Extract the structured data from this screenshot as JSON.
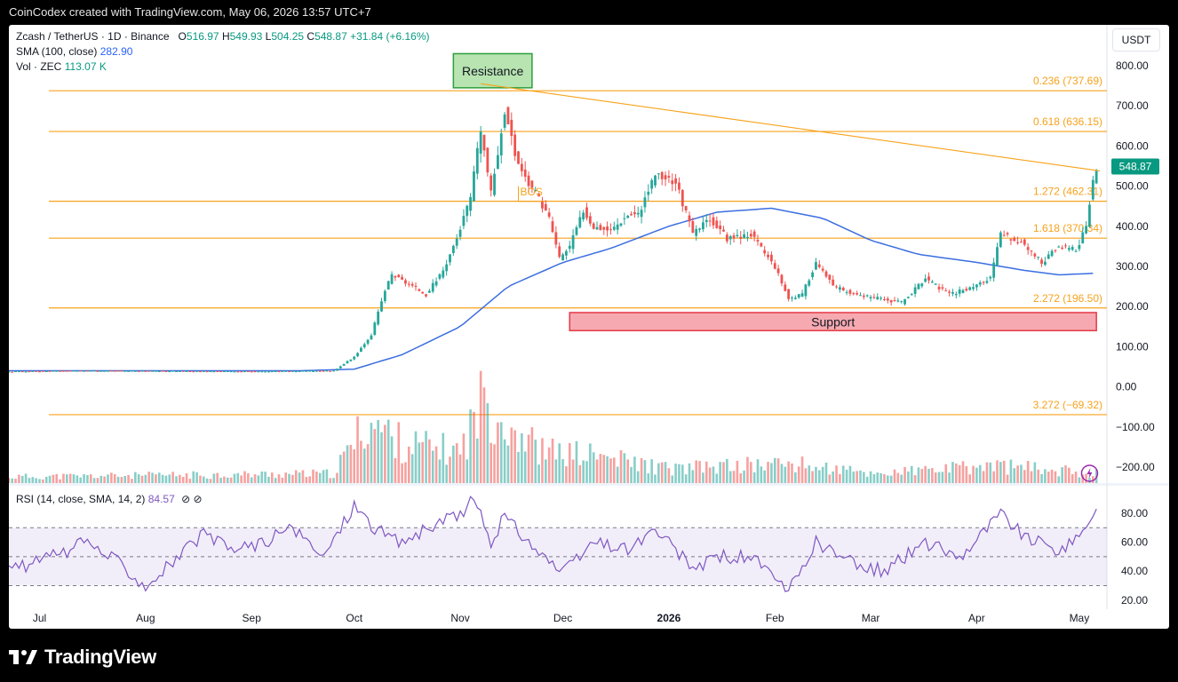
{
  "header": {
    "caption": "CoinCodex created with TradingView.com, May 06, 2026 13:57 UTC+7"
  },
  "legend": {
    "symbol": "Zcash / TetherUS · 1D · Binance",
    "o_label": "O",
    "o_value": "516.97",
    "h_label": "H",
    "h_value": "549.93",
    "l_label": "L",
    "l_value": "504.25",
    "c_label": "C",
    "c_value": "548.87",
    "change": "+31.84 (+6.16%)",
    "sma_label": "SMA (100, close)",
    "sma_value": "282.90",
    "vol_label": "Vol · ZEC",
    "vol_value": "113.07 K",
    "rsi_label": "RSI (14, close, SMA, 14, 2)",
    "rsi_value": "84.57",
    "hide_icons": "⊘ ⊘"
  },
  "currency": "USDT",
  "footer": {
    "brand": "TradingView",
    "logo_icon": "tradingview-logo-icon"
  },
  "colors": {
    "up": "#26a69a",
    "down": "#ef5350",
    "sma": "#3b6ee0",
    "fib": "#f7a21b",
    "rsi": "#7e57c2",
    "resistance_fill": "#b7e4b0",
    "resistance_border": "#2e9e3e",
    "support_fill": "#f6a9b0",
    "support_border": "#e53946",
    "price_tag": "#089981"
  },
  "chart_data": {
    "type": "candlestick",
    "title": "Zcash / TetherUS · 1D · Binance",
    "x_ticks": [
      "Jul",
      "Aug",
      "Sep",
      "Oct",
      "Nov",
      "Dec",
      "2026",
      "Feb",
      "Mar",
      "Apr",
      "May"
    ],
    "y_ticks": [
      "800.00",
      "700.00",
      "600.00",
      "500.00",
      "400.00",
      "300.00",
      "200.00",
      "100.00",
      "0.00",
      "−100.00",
      "−200.00"
    ],
    "rsi_ticks": [
      "80.00",
      "60.00",
      "40.00",
      "20.00"
    ],
    "ylim": [
      -240,
      845
    ],
    "rsi_ylim": [
      14,
      93
    ],
    "rsi_bands": {
      "upper": 70,
      "middle": 50,
      "lower": 30
    },
    "last_price": "548.87",
    "fib_levels": [
      {
        "label": "0.236 (737.69)",
        "value": 737.69
      },
      {
        "label": "0.618 (636.15)",
        "value": 636.15
      },
      {
        "label": "1.272 (462.31)",
        "value": 462.31
      },
      {
        "label": "1.618 (370.34)",
        "value": 370.34
      },
      {
        "label": "2.272 (196.50)",
        "value": 196.5
      },
      {
        "label": "3.272 (−69.32)",
        "value": -69.32
      }
    ],
    "resistance_label": "Resistance",
    "support_label": "Support",
    "bos_label": "BOS",
    "trendline": {
      "from": [
        "2025-11-07",
        755
      ],
      "to": [
        "2026-05-07",
        538
      ]
    },
    "price_keys": [
      [
        "2025-06-21",
        38
      ],
      [
        "2025-07-15",
        40
      ],
      [
        "2025-08-10",
        39
      ],
      [
        "2025-09-05",
        38
      ],
      [
        "2025-09-25",
        40
      ],
      [
        "2025-10-01",
        75
      ],
      [
        "2025-10-06",
        130
      ],
      [
        "2025-10-10",
        240
      ],
      [
        "2025-10-12",
        280
      ],
      [
        "2025-10-18",
        250
      ],
      [
        "2025-10-22",
        230
      ],
      [
        "2025-10-27",
        290
      ],
      [
        "2025-10-31",
        370
      ],
      [
        "2025-11-04",
        470
      ],
      [
        "2025-11-07",
        640
      ],
      [
        "2025-11-10",
        480
      ],
      [
        "2025-11-14",
        690
      ],
      [
        "2025-11-17",
        580
      ],
      [
        "2025-11-20",
        520
      ],
      [
        "2025-11-24",
        470
      ],
      [
        "2025-11-27",
        420
      ],
      [
        "2025-11-30",
        320
      ],
      [
        "2025-12-03",
        350
      ],
      [
        "2025-12-07",
        440
      ],
      [
        "2025-12-10",
        400
      ],
      [
        "2025-12-15",
        390
      ],
      [
        "2025-12-20",
        430
      ],
      [
        "2025-12-23",
        430
      ],
      [
        "2025-12-28",
        530
      ],
      [
        "2026-01-03",
        510
      ],
      [
        "2026-01-08",
        380
      ],
      [
        "2026-01-13",
        420
      ],
      [
        "2026-01-18",
        370
      ],
      [
        "2026-01-25",
        380
      ],
      [
        "2026-02-01",
        300
      ],
      [
        "2026-02-05",
        220
      ],
      [
        "2026-02-09",
        230
      ],
      [
        "2026-02-13",
        310
      ],
      [
        "2026-02-18",
        250
      ],
      [
        "2026-02-24",
        230
      ],
      [
        "2026-03-03",
        220
      ],
      [
        "2026-03-10",
        210
      ],
      [
        "2026-03-17",
        270
      ],
      [
        "2026-03-24",
        230
      ],
      [
        "2026-03-31",
        250
      ],
      [
        "2026-04-05",
        270
      ],
      [
        "2026-04-08",
        380
      ],
      [
        "2026-04-14",
        360
      ],
      [
        "2026-04-20",
        310
      ],
      [
        "2026-04-25",
        350
      ],
      [
        "2026-04-30",
        340
      ],
      [
        "2026-05-03",
        400
      ],
      [
        "2026-05-05",
        517
      ],
      [
        "2026-05-06",
        549
      ]
    ],
    "sma_keys": [
      [
        "2025-06-21",
        40
      ],
      [
        "2025-09-15",
        40
      ],
      [
        "2025-10-01",
        44
      ],
      [
        "2025-10-15",
        80
      ],
      [
        "2025-11-01",
        150
      ],
      [
        "2025-11-15",
        250
      ],
      [
        "2025-12-01",
        310
      ],
      [
        "2025-12-15",
        345
      ],
      [
        "2026-01-01",
        400
      ],
      [
        "2026-01-15",
        435
      ],
      [
        "2026-01-31",
        445
      ],
      [
        "2026-02-15",
        420
      ],
      [
        "2026-03-01",
        365
      ],
      [
        "2026-03-15",
        330
      ],
      [
        "2026-04-01",
        310
      ],
      [
        "2026-04-15",
        290
      ],
      [
        "2026-04-25",
        279
      ],
      [
        "2026-05-06",
        283
      ]
    ],
    "rsi_keys": [
      [
        "2025-06-21",
        40
      ],
      [
        "2025-07-05",
        50
      ],
      [
        "2025-07-15",
        60
      ],
      [
        "2025-07-25",
        45
      ],
      [
        "2025-08-01",
        30
      ],
      [
        "2025-08-08",
        45
      ],
      [
        "2025-08-18",
        65
      ],
      [
        "2025-08-26",
        55
      ],
      [
        "2025-09-05",
        60
      ],
      [
        "2025-09-12",
        70
      ],
      [
        "2025-09-22",
        50
      ],
      [
        "2025-10-01",
        86
      ],
      [
        "2025-10-07",
        70
      ],
      [
        "2025-10-14",
        60
      ],
      [
        "2025-10-22",
        68
      ],
      [
        "2025-11-01",
        80
      ],
      [
        "2025-11-05",
        90
      ],
      [
        "2025-11-10",
        60
      ],
      [
        "2025-11-14",
        78
      ],
      [
        "2025-11-22",
        58
      ],
      [
        "2025-12-01",
        38
      ],
      [
        "2025-12-10",
        60
      ],
      [
        "2025-12-20",
        55
      ],
      [
        "2025-12-28",
        68
      ],
      [
        "2026-01-08",
        42
      ],
      [
        "2026-01-15",
        50
      ],
      [
        "2026-01-25",
        50
      ],
      [
        "2026-02-05",
        25
      ],
      [
        "2026-02-13",
        60
      ],
      [
        "2026-02-24",
        45
      ],
      [
        "2026-03-05",
        40
      ],
      [
        "2026-03-17",
        60
      ],
      [
        "2026-03-27",
        50
      ],
      [
        "2026-04-08",
        80
      ],
      [
        "2026-04-16",
        62
      ],
      [
        "2026-04-24",
        55
      ],
      [
        "2026-04-30",
        60
      ],
      [
        "2026-05-06",
        85
      ]
    ],
    "rsi_sma_keys": [
      [
        "2025-06-21",
        45
      ],
      [
        "2025-08-01",
        48
      ],
      [
        "2025-09-01",
        55
      ],
      [
        "2025-10-01",
        60
      ],
      [
        "2025-11-01",
        68
      ],
      [
        "2025-12-01",
        58
      ],
      [
        "2026-01-01",
        55
      ],
      [
        "2026-02-01",
        45
      ],
      [
        "2026-03-01",
        45
      ],
      [
        "2026-04-01",
        55
      ],
      [
        "2026-05-06",
        65
      ]
    ],
    "volume_keys": [
      [
        "2025-06-21",
        8
      ],
      [
        "2025-09-25",
        12
      ],
      [
        "2025-10-05",
        80
      ],
      [
        "2025-10-15",
        50
      ],
      [
        "2025-11-01",
        40
      ],
      [
        "2025-11-08",
        110
      ],
      [
        "2025-11-14",
        80
      ],
      [
        "2025-11-25",
        40
      ],
      [
        "2025-12-10",
        35
      ],
      [
        "2026-01-01",
        18
      ],
      [
        "2026-02-05",
        25
      ],
      [
        "2026-03-01",
        12
      ],
      [
        "2026-04-08",
        22
      ],
      [
        "2026-05-06",
        12
      ]
    ],
    "volume_max": 150
  }
}
